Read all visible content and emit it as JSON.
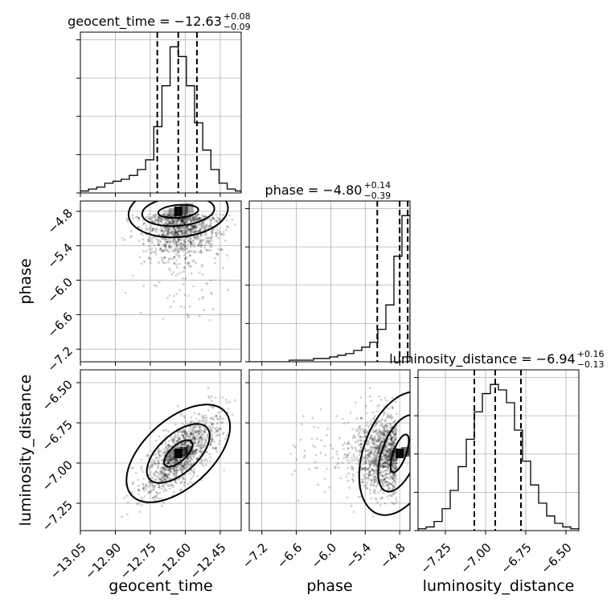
{
  "chart_data": {
    "type": "corner",
    "parameters": [
      "geocent_time",
      "phase",
      "luminosity_distance"
    ],
    "axis_labels": {
      "geocent_time": "geocent_time",
      "phase": "phase",
      "luminosity_distance": "luminosity_distance"
    },
    "ranges": {
      "geocent_time": [
        -13.05,
        -12.36
      ],
      "phase": [
        -7.42,
        -4.62
      ],
      "luminosity_distance": [
        -7.42,
        -6.42
      ]
    },
    "ticks": {
      "geocent_time": [
        -13.05,
        -12.9,
        -12.75,
        -12.6,
        -12.45
      ],
      "phase": [
        -7.2,
        -6.6,
        -6.0,
        -5.4,
        -4.8
      ],
      "luminosity_distance": [
        -7.25,
        -7.0,
        -6.75,
        -6.5
      ]
    },
    "tick_labels": {
      "geocent_time": [
        "−13.05",
        "−12.90",
        "−12.75",
        "−12.60",
        "−12.45"
      ],
      "phase": [
        "−7.2",
        "−6.6",
        "−6.0",
        "−5.4",
        "−4.8"
      ],
      "luminosity_distance": [
        "−7.25",
        "−7.00",
        "−6.75",
        "−6.50"
      ]
    },
    "titles": {
      "geocent_time": {
        "main": "geocent_time = −12.63",
        "plus": "+0.08",
        "minus": "−0.09"
      },
      "phase": {
        "main": "phase = −4.80",
        "plus": "+0.14",
        "minus": "−0.39"
      },
      "luminosity_distance": {
        "main": "luminosity_distance = −6.94",
        "plus": "+0.16",
        "minus": "−0.13"
      }
    },
    "quantiles": {
      "geocent_time": [
        -12.72,
        -12.63,
        -12.55
      ],
      "phase": [
        -5.19,
        -4.8,
        -4.66
      ],
      "luminosity_distance": [
        -7.07,
        -6.94,
        -6.78
      ]
    },
    "histograms": {
      "geocent_time": {
        "bins": [
          -13.05,
          -13.015,
          -12.98,
          -12.945,
          -12.91,
          -12.875,
          -12.84,
          -12.805,
          -12.77,
          -12.735,
          -12.7,
          -12.665,
          -12.63,
          -12.595,
          -12.56,
          -12.525,
          -12.49,
          -12.455,
          -12.42,
          -12.385,
          -12.35
        ],
        "counts": [
          1,
          2,
          3,
          5,
          6,
          7,
          9,
          12,
          17,
          34,
          55,
          75,
          70,
          55,
          36,
          22,
          12,
          5,
          2,
          1
        ]
      },
      "phase": {
        "bins": [
          -7.42,
          -7.28,
          -7.14,
          -7.0,
          -6.86,
          -6.72,
          -6.58,
          -6.44,
          -6.3,
          -6.16,
          -6.02,
          -5.88,
          -5.74,
          -5.6,
          -5.46,
          -5.32,
          -5.18,
          -5.04,
          -4.9,
          -4.76,
          -4.62
        ],
        "counts": [
          0,
          0,
          0,
          0,
          0,
          1,
          1,
          1,
          2,
          2,
          3,
          4,
          5,
          7,
          9,
          12,
          20,
          35,
          65,
          90
        ]
      },
      "luminosity_distance": {
        "bins": [
          -7.42,
          -7.37,
          -7.32,
          -7.27,
          -7.22,
          -7.17,
          -7.12,
          -7.07,
          -7.02,
          -6.97,
          -6.92,
          -6.87,
          -6.82,
          -6.77,
          -6.72,
          -6.67,
          -6.62,
          -6.57,
          -6.52,
          -6.47,
          -6.42
        ],
        "counts": [
          1,
          2,
          5,
          12,
          22,
          35,
          50,
          65,
          75,
          80,
          77,
          70,
          55,
          38,
          25,
          15,
          8,
          4,
          2,
          1
        ]
      }
    },
    "posterior_center": {
      "geocent_time": -12.63,
      "phase": -4.8,
      "luminosity_distance": -6.94
    },
    "grid": true
  }
}
